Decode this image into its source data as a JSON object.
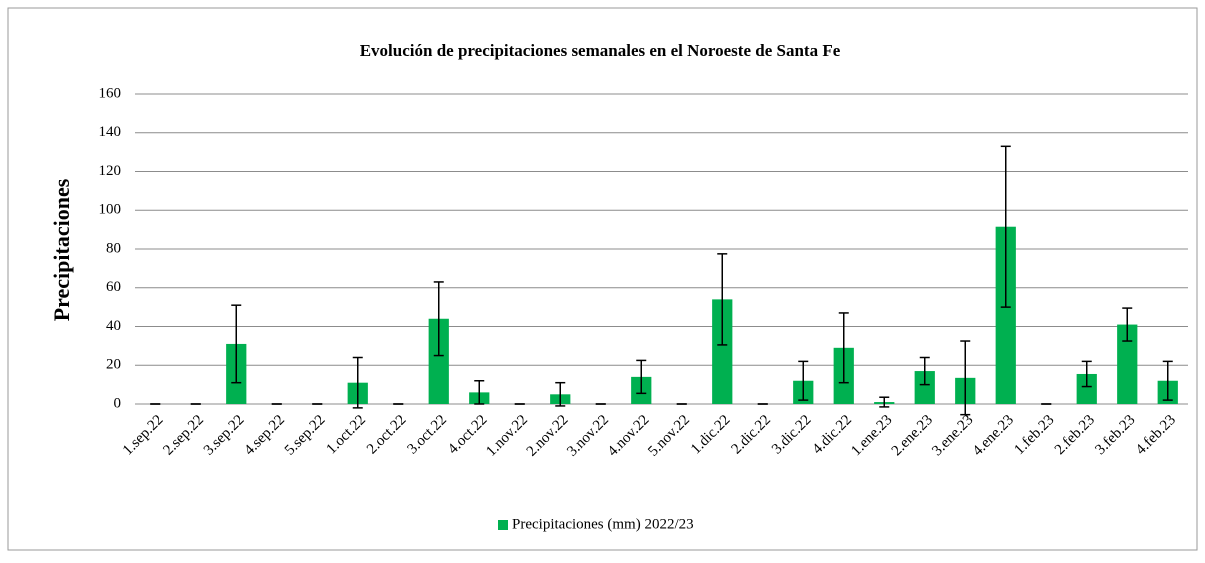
{
  "chart_data": {
    "type": "bar",
    "title": "Evolución de precipitaciones semanales en el Noroeste de Santa Fe",
    "y_label": "Precipitaciones",
    "categories": [
      "1.sep.22",
      "2.sep.22",
      "3.sep.22",
      "4.sep.22",
      "5.sep.22",
      "1.oct.22",
      "2.oct.22",
      "3.oct.22",
      "4.oct.22",
      "1.nov.22",
      "2.nov.22",
      "3.nov.22",
      "4.nov.22",
      "5.nov.22",
      "1.dic.22",
      "2.dic.22",
      "3.dic.22",
      "4.dic.22",
      "1.ene.23",
      "2.ene.23",
      "3.ene.23",
      "4.ene.23",
      "1.feb.23",
      "2.feb.23",
      "3.feb.23",
      "4.feb.23"
    ],
    "series": [
      {
        "name": "Precipitaciones (mm) 2022/23",
        "color": "#00b050",
        "values": [
          0,
          0,
          31,
          0,
          0,
          11,
          0,
          44,
          6,
          0,
          5,
          0,
          14,
          0,
          54,
          0,
          12,
          29,
          1,
          17,
          13.5,
          91.5,
          0,
          15.5,
          41,
          12
        ],
        "errors": [
          0,
          0,
          20,
          0,
          0,
          13,
          0,
          19,
          6,
          0,
          6,
          0,
          8.5,
          0,
          23.5,
          0,
          10,
          18,
          2.5,
          7,
          19,
          41.5,
          0,
          6.5,
          8.5,
          10
        ]
      }
    ],
    "ylim": [
      0,
      160
    ],
    "yticks": [
      0,
      20,
      40,
      60,
      80,
      100,
      120,
      140,
      160
    ],
    "grid": true,
    "legend": "bottom"
  }
}
